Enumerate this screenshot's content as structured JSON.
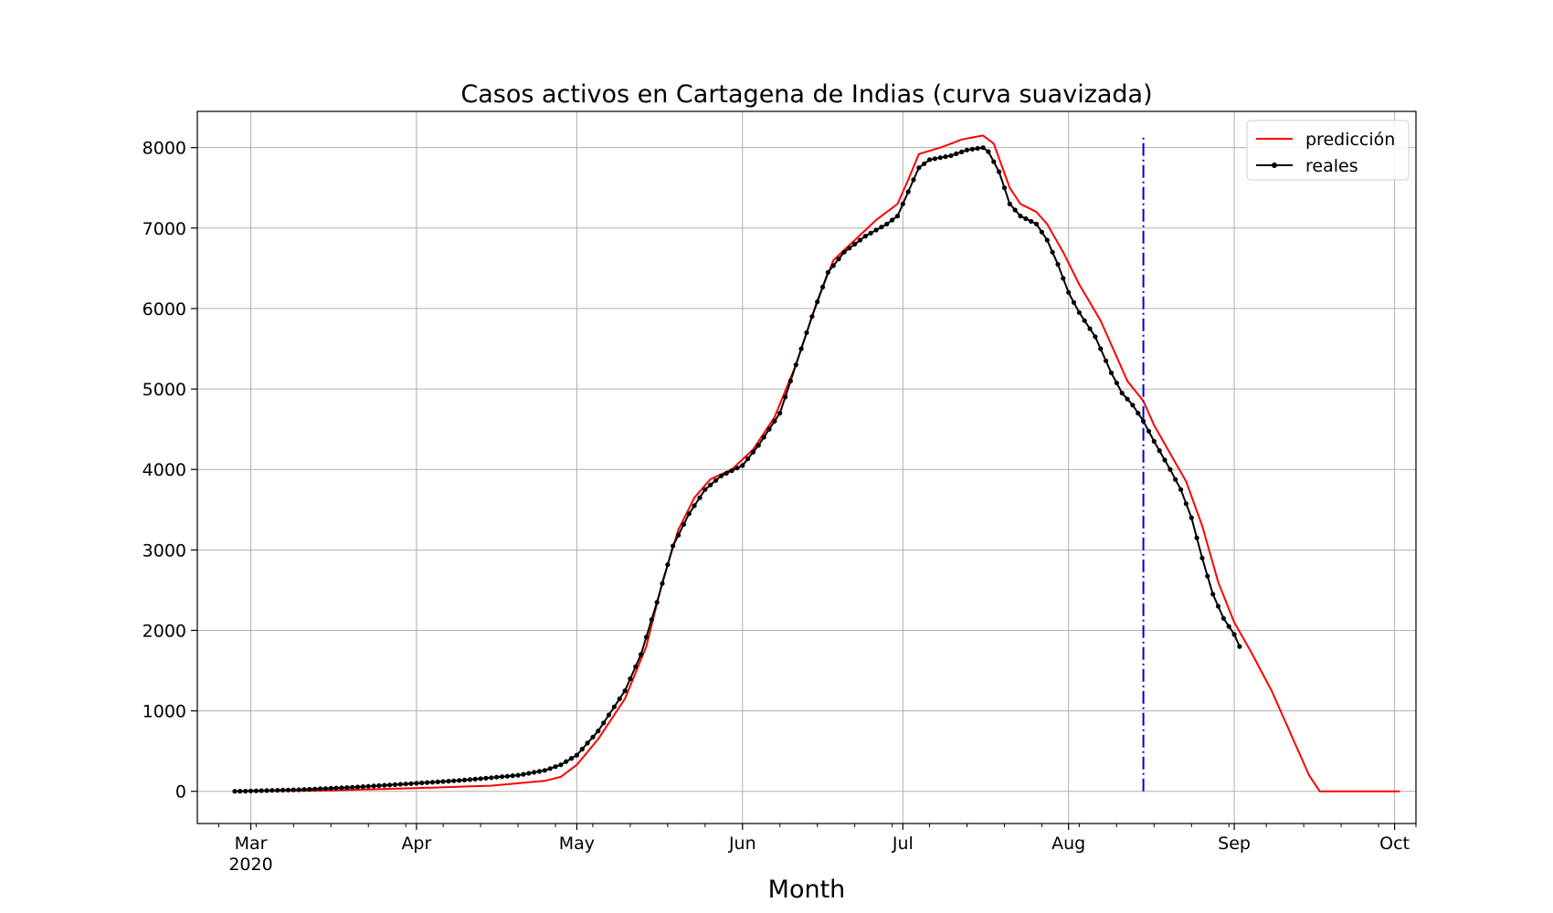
{
  "chart_data": {
    "type": "line",
    "title": "Casos activos en Cartagena de Indias (curva suavizada)",
    "xlabel": "Month",
    "ylabel": "",
    "x_axis": {
      "type": "date",
      "range": [
        "2020-02-20",
        "2020-10-05"
      ],
      "ticks": [
        {
          "date": "2020-03-01",
          "label": "Mar",
          "sublabel": "2020"
        },
        {
          "date": "2020-04-01",
          "label": "Apr",
          "sublabel": ""
        },
        {
          "date": "2020-05-01",
          "label": "May",
          "sublabel": ""
        },
        {
          "date": "2020-06-01",
          "label": "Jun",
          "sublabel": ""
        },
        {
          "date": "2020-07-01",
          "label": "Jul",
          "sublabel": ""
        },
        {
          "date": "2020-08-01",
          "label": "Aug",
          "sublabel": ""
        },
        {
          "date": "2020-09-01",
          "label": "Sep",
          "sublabel": ""
        },
        {
          "date": "2020-10-01",
          "label": "Oct",
          "sublabel": ""
        }
      ]
    },
    "y_axis": {
      "range": [
        -400,
        8450
      ],
      "ticks": [
        0,
        1000,
        2000,
        3000,
        4000,
        5000,
        6000,
        7000,
        8000
      ]
    },
    "grid": true,
    "legend_position": "top-right",
    "annotations": [
      {
        "type": "vertical-line",
        "date": "2020-08-15",
        "y_range": [
          0,
          8150
        ],
        "style": "dash-dot",
        "color": "#0000cc"
      }
    ],
    "series": [
      {
        "name": "predicción",
        "color": "#ff0000",
        "markers": false,
        "points": [
          [
            "2020-02-27",
            0
          ],
          [
            "2020-03-15",
            10
          ],
          [
            "2020-04-01",
            40
          ],
          [
            "2020-04-15",
            70
          ],
          [
            "2020-04-25",
            130
          ],
          [
            "2020-04-28",
            180
          ],
          [
            "2020-05-01",
            330
          ],
          [
            "2020-05-05",
            650
          ],
          [
            "2020-05-10",
            1150
          ],
          [
            "2020-05-14",
            1800
          ],
          [
            "2020-05-17",
            2600
          ],
          [
            "2020-05-20",
            3250
          ],
          [
            "2020-05-23",
            3650
          ],
          [
            "2020-05-26",
            3880
          ],
          [
            "2020-05-30",
            4000
          ],
          [
            "2020-06-03",
            4250
          ],
          [
            "2020-06-07",
            4650
          ],
          [
            "2020-06-11",
            5300
          ],
          [
            "2020-06-15",
            6100
          ],
          [
            "2020-06-18",
            6600
          ],
          [
            "2020-06-22",
            6850
          ],
          [
            "2020-06-26",
            7100
          ],
          [
            "2020-06-30",
            7300
          ],
          [
            "2020-07-02",
            7600
          ],
          [
            "2020-07-04",
            7920
          ],
          [
            "2020-07-08",
            8000
          ],
          [
            "2020-07-12",
            8100
          ],
          [
            "2020-07-16",
            8150
          ],
          [
            "2020-07-18",
            8050
          ],
          [
            "2020-07-21",
            7500
          ],
          [
            "2020-07-23",
            7300
          ],
          [
            "2020-07-26",
            7200
          ],
          [
            "2020-07-28",
            7050
          ],
          [
            "2020-07-31",
            6700
          ],
          [
            "2020-08-03",
            6300
          ],
          [
            "2020-08-07",
            5850
          ],
          [
            "2020-08-10",
            5400
          ],
          [
            "2020-08-12",
            5100
          ],
          [
            "2020-08-15",
            4850
          ],
          [
            "2020-08-17",
            4550
          ],
          [
            "2020-08-20",
            4200
          ],
          [
            "2020-08-23",
            3850
          ],
          [
            "2020-08-26",
            3300
          ],
          [
            "2020-08-29",
            2600
          ],
          [
            "2020-09-01",
            2100
          ],
          [
            "2020-09-04",
            1750
          ],
          [
            "2020-09-08",
            1250
          ],
          [
            "2020-09-12",
            650
          ],
          [
            "2020-09-15",
            200
          ],
          [
            "2020-09-17",
            0
          ],
          [
            "2020-10-02",
            0
          ]
        ]
      },
      {
        "name": "reales",
        "color": "#000000",
        "markers": true,
        "points": [
          [
            "2020-02-27",
            0
          ],
          [
            "2020-03-01",
            5
          ],
          [
            "2020-03-10",
            20
          ],
          [
            "2020-03-20",
            50
          ],
          [
            "2020-04-01",
            100
          ],
          [
            "2020-04-10",
            140
          ],
          [
            "2020-04-20",
            200
          ],
          [
            "2020-04-25",
            260
          ],
          [
            "2020-04-28",
            330
          ],
          [
            "2020-05-01",
            450
          ],
          [
            "2020-05-05",
            750
          ],
          [
            "2020-05-10",
            1250
          ],
          [
            "2020-05-13",
            1700
          ],
          [
            "2020-05-16",
            2350
          ],
          [
            "2020-05-19",
            3050
          ],
          [
            "2020-05-22",
            3450
          ],
          [
            "2020-05-25",
            3750
          ],
          [
            "2020-05-28",
            3920
          ],
          [
            "2020-06-01",
            4050
          ],
          [
            "2020-06-04",
            4300
          ],
          [
            "2020-06-08",
            4700
          ],
          [
            "2020-06-11",
            5300
          ],
          [
            "2020-06-14",
            5900
          ],
          [
            "2020-06-17",
            6450
          ],
          [
            "2020-06-20",
            6700
          ],
          [
            "2020-06-24",
            6900
          ],
          [
            "2020-06-28",
            7050
          ],
          [
            "2020-06-30",
            7150
          ],
          [
            "2020-07-02",
            7450
          ],
          [
            "2020-07-04",
            7750
          ],
          [
            "2020-07-06",
            7850
          ],
          [
            "2020-07-10",
            7900
          ],
          [
            "2020-07-13",
            7970
          ],
          [
            "2020-07-16",
            8000
          ],
          [
            "2020-07-17",
            7950
          ],
          [
            "2020-07-19",
            7700
          ],
          [
            "2020-07-21",
            7300
          ],
          [
            "2020-07-23",
            7150
          ],
          [
            "2020-07-26",
            7050
          ],
          [
            "2020-07-28",
            6850
          ],
          [
            "2020-07-30",
            6550
          ],
          [
            "2020-08-01",
            6200
          ],
          [
            "2020-08-03",
            5950
          ],
          [
            "2020-08-06",
            5650
          ],
          [
            "2020-08-09",
            5200
          ],
          [
            "2020-08-11",
            4950
          ],
          [
            "2020-08-13",
            4800
          ],
          [
            "2020-08-15",
            4600
          ],
          [
            "2020-08-17",
            4350
          ],
          [
            "2020-08-20",
            4000
          ],
          [
            "2020-08-22",
            3750
          ],
          [
            "2020-08-24",
            3400
          ],
          [
            "2020-08-26",
            2900
          ],
          [
            "2020-08-28",
            2450
          ],
          [
            "2020-08-30",
            2150
          ],
          [
            "2020-09-01",
            1950
          ],
          [
            "2020-09-02",
            1800
          ]
        ]
      }
    ]
  }
}
